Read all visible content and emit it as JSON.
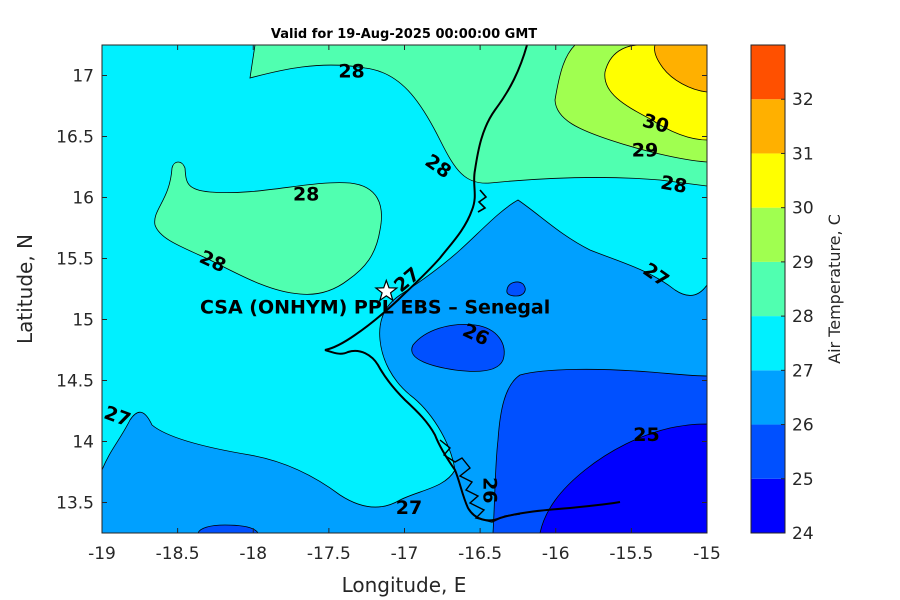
{
  "title": "Valid for 19-Aug-2025 00:00:00 GMT",
  "map": {
    "xlabel": "Longitude, E",
    "ylabel": "Latitude, N",
    "xlim": [
      -19,
      -15
    ],
    "ylim": [
      13.25,
      17.25
    ],
    "x_ticks": [
      "-19",
      "-18.5",
      "-18",
      "-17.5",
      "-17",
      "-16.5",
      "-16",
      "-15.5",
      "-15"
    ],
    "y_ticks": [
      "13.5",
      "14",
      "14.5",
      "15",
      "15.5",
      "16",
      "16.5",
      "17"
    ],
    "station": {
      "label": "CSA (ONHYM) PPL EBS  – Senegal",
      "lon": -17.12,
      "lat": 15.23
    },
    "contour_labels": [
      {
        "text": "28",
        "lon": -17.35,
        "lat": 17.03,
        "angle": 0
      },
      {
        "text": "28",
        "lon": -16.78,
        "lat": 16.25,
        "angle": 35
      },
      {
        "text": "28",
        "lon": -17.65,
        "lat": 16.02,
        "angle": 0
      },
      {
        "text": "28",
        "lon": -18.27,
        "lat": 15.47,
        "angle": 25
      },
      {
        "text": "27",
        "lon": -16.98,
        "lat": 15.32,
        "angle": -40
      },
      {
        "text": "26",
        "lon": -16.53,
        "lat": 14.87,
        "angle": 25
      },
      {
        "text": "30",
        "lon": -15.34,
        "lat": 16.6,
        "angle": 15
      },
      {
        "text": "29",
        "lon": -15.41,
        "lat": 16.38,
        "angle": 0
      },
      {
        "text": "28",
        "lon": -15.22,
        "lat": 16.1,
        "angle": 10
      },
      {
        "text": "27",
        "lon": -15.34,
        "lat": 15.36,
        "angle": 35
      },
      {
        "text": "27",
        "lon": -18.9,
        "lat": 14.2,
        "angle": 20
      },
      {
        "text": "25",
        "lon": -15.4,
        "lat": 14.05,
        "angle": 0
      },
      {
        "text": "26",
        "lon": -16.44,
        "lat": 13.6,
        "angle": 90
      },
      {
        "text": "27",
        "lon": -16.97,
        "lat": 13.45,
        "angle": 0
      }
    ]
  },
  "colorbar": {
    "label": "Air Temperature, C",
    "levels": [
      24,
      25,
      26,
      27,
      28,
      29,
      30,
      31,
      32
    ],
    "tick_labels": [
      "24",
      "25",
      "26",
      "27",
      "28",
      "29",
      "30",
      "31",
      "32"
    ],
    "colors": [
      "#0000ff",
      "#0050ff",
      "#00a0ff",
      "#00f0ff",
      "#50ffb0",
      "#a0ff50",
      "#ffff00",
      "#ffb000",
      "#ff5000"
    ]
  }
}
